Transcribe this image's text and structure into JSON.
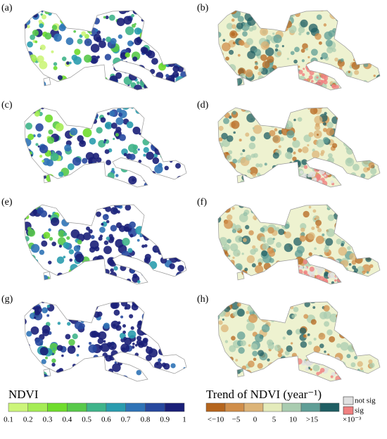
{
  "panels": [
    {
      "label": "(a)"
    },
    {
      "label": "(b)"
    },
    {
      "label": "(c)"
    },
    {
      "label": "(d)"
    },
    {
      "label": "(e)"
    },
    {
      "label": "(f)"
    },
    {
      "label": "(g)"
    },
    {
      "label": "(h)"
    }
  ],
  "ndvi_legend": {
    "title": "NDVI",
    "ticks": [
      0.1,
      0.2,
      0.3,
      0.4,
      0.5,
      0.6,
      0.7,
      0.8,
      0.9,
      1
    ],
    "colors": [
      "#ccf57a",
      "#a5ec55",
      "#6fdc2c",
      "#58c94a",
      "#3fb48a",
      "#2a9cae",
      "#2f73b6",
      "#27489e",
      "#1a1f78"
    ]
  },
  "trend_legend": {
    "title": "Trend of NDVI (year⁻¹)",
    "ticks": [
      "<−10",
      "−5",
      "0",
      "5",
      "10",
      ">15"
    ],
    "unit": "×10⁻³",
    "colors": [
      "#b5651d",
      "#d08e4a",
      "#dcb478",
      "#e4ebbb",
      "#a9ccb0",
      "#5f9e96",
      "#1f5e63"
    ]
  },
  "significance_legend": [
    {
      "label": "not sig",
      "color": "#e0e0e0"
    },
    {
      "label": "sig",
      "color": "#f08080"
    }
  ]
}
